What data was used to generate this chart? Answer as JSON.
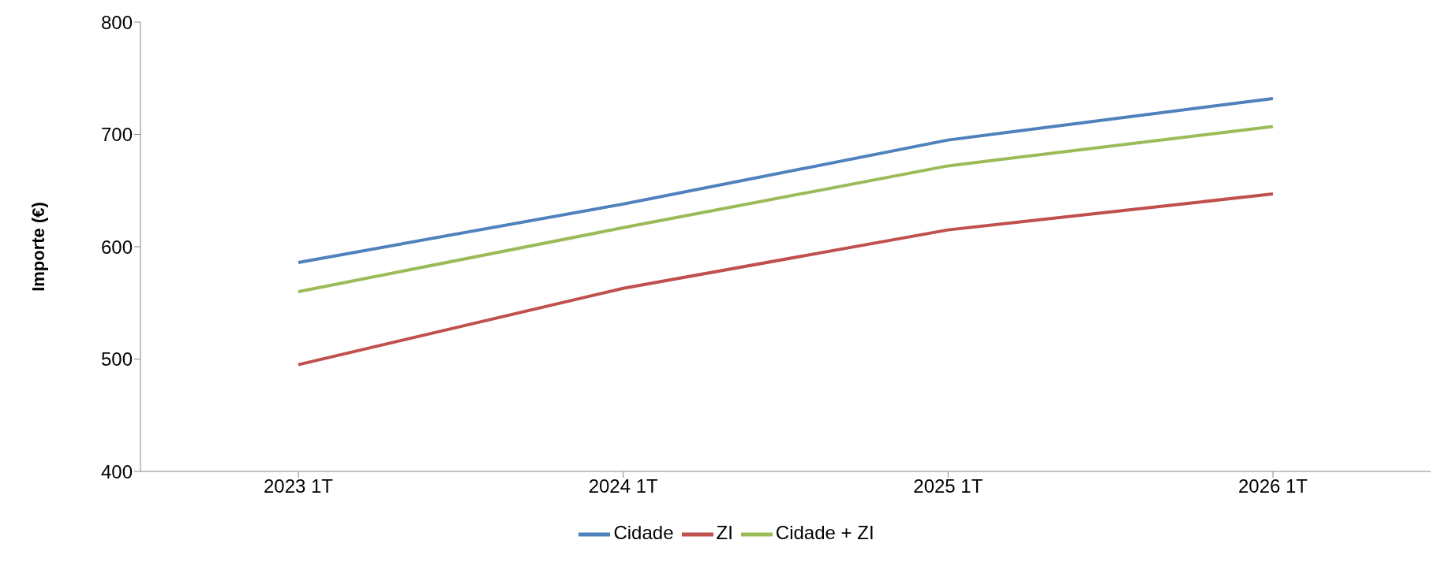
{
  "chart_data": {
    "type": "line",
    "ylabel": "Importe (€)",
    "categories": [
      "2023 1T",
      "2024 1T",
      "2025 1T",
      "2026 1T"
    ],
    "series": [
      {
        "name": "Cidade",
        "color": "#4f81bd",
        "values": [
          586,
          638,
          695,
          732
        ]
      },
      {
        "name": "ZI",
        "color": "#c0504d",
        "values": [
          495,
          563,
          615,
          647
        ]
      },
      {
        "name": "Cidade + ZI",
        "color": "#9bbb59",
        "values": [
          560,
          617,
          672,
          707
        ]
      }
    ],
    "ylim": [
      400,
      800
    ],
    "yticks": [
      400,
      500,
      600,
      700,
      800
    ],
    "grid": false,
    "legend": "bottom",
    "marker": "none"
  }
}
